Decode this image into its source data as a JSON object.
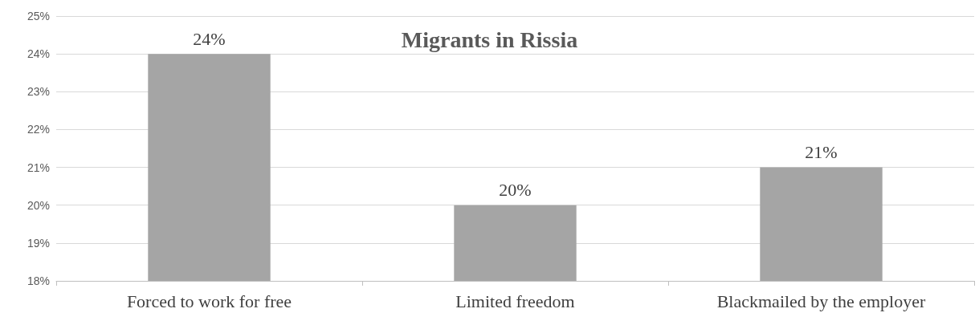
{
  "chart_data": {
    "type": "bar",
    "title": "Migrants in Rissia",
    "categories": [
      "Forced to work for free",
      "Limited freedom",
      "Blackmailed by the employer"
    ],
    "values": [
      24,
      20,
      21
    ],
    "color": "#a5a5a5",
    "value_labels": [
      "24%",
      "20%",
      "21%"
    ],
    "ylim": [
      18,
      25
    ],
    "yticks": [
      {
        "value": 18,
        "label": "18%"
      },
      {
        "value": 19,
        "label": "19%"
      },
      {
        "value": 20,
        "label": "20%"
      },
      {
        "value": 21,
        "label": "21%"
      },
      {
        "value": 22,
        "label": "22%"
      },
      {
        "value": 23,
        "label": "23%"
      },
      {
        "value": 24,
        "label": "24%"
      },
      {
        "value": 25,
        "label": "25%"
      }
    ],
    "grid": "y"
  }
}
